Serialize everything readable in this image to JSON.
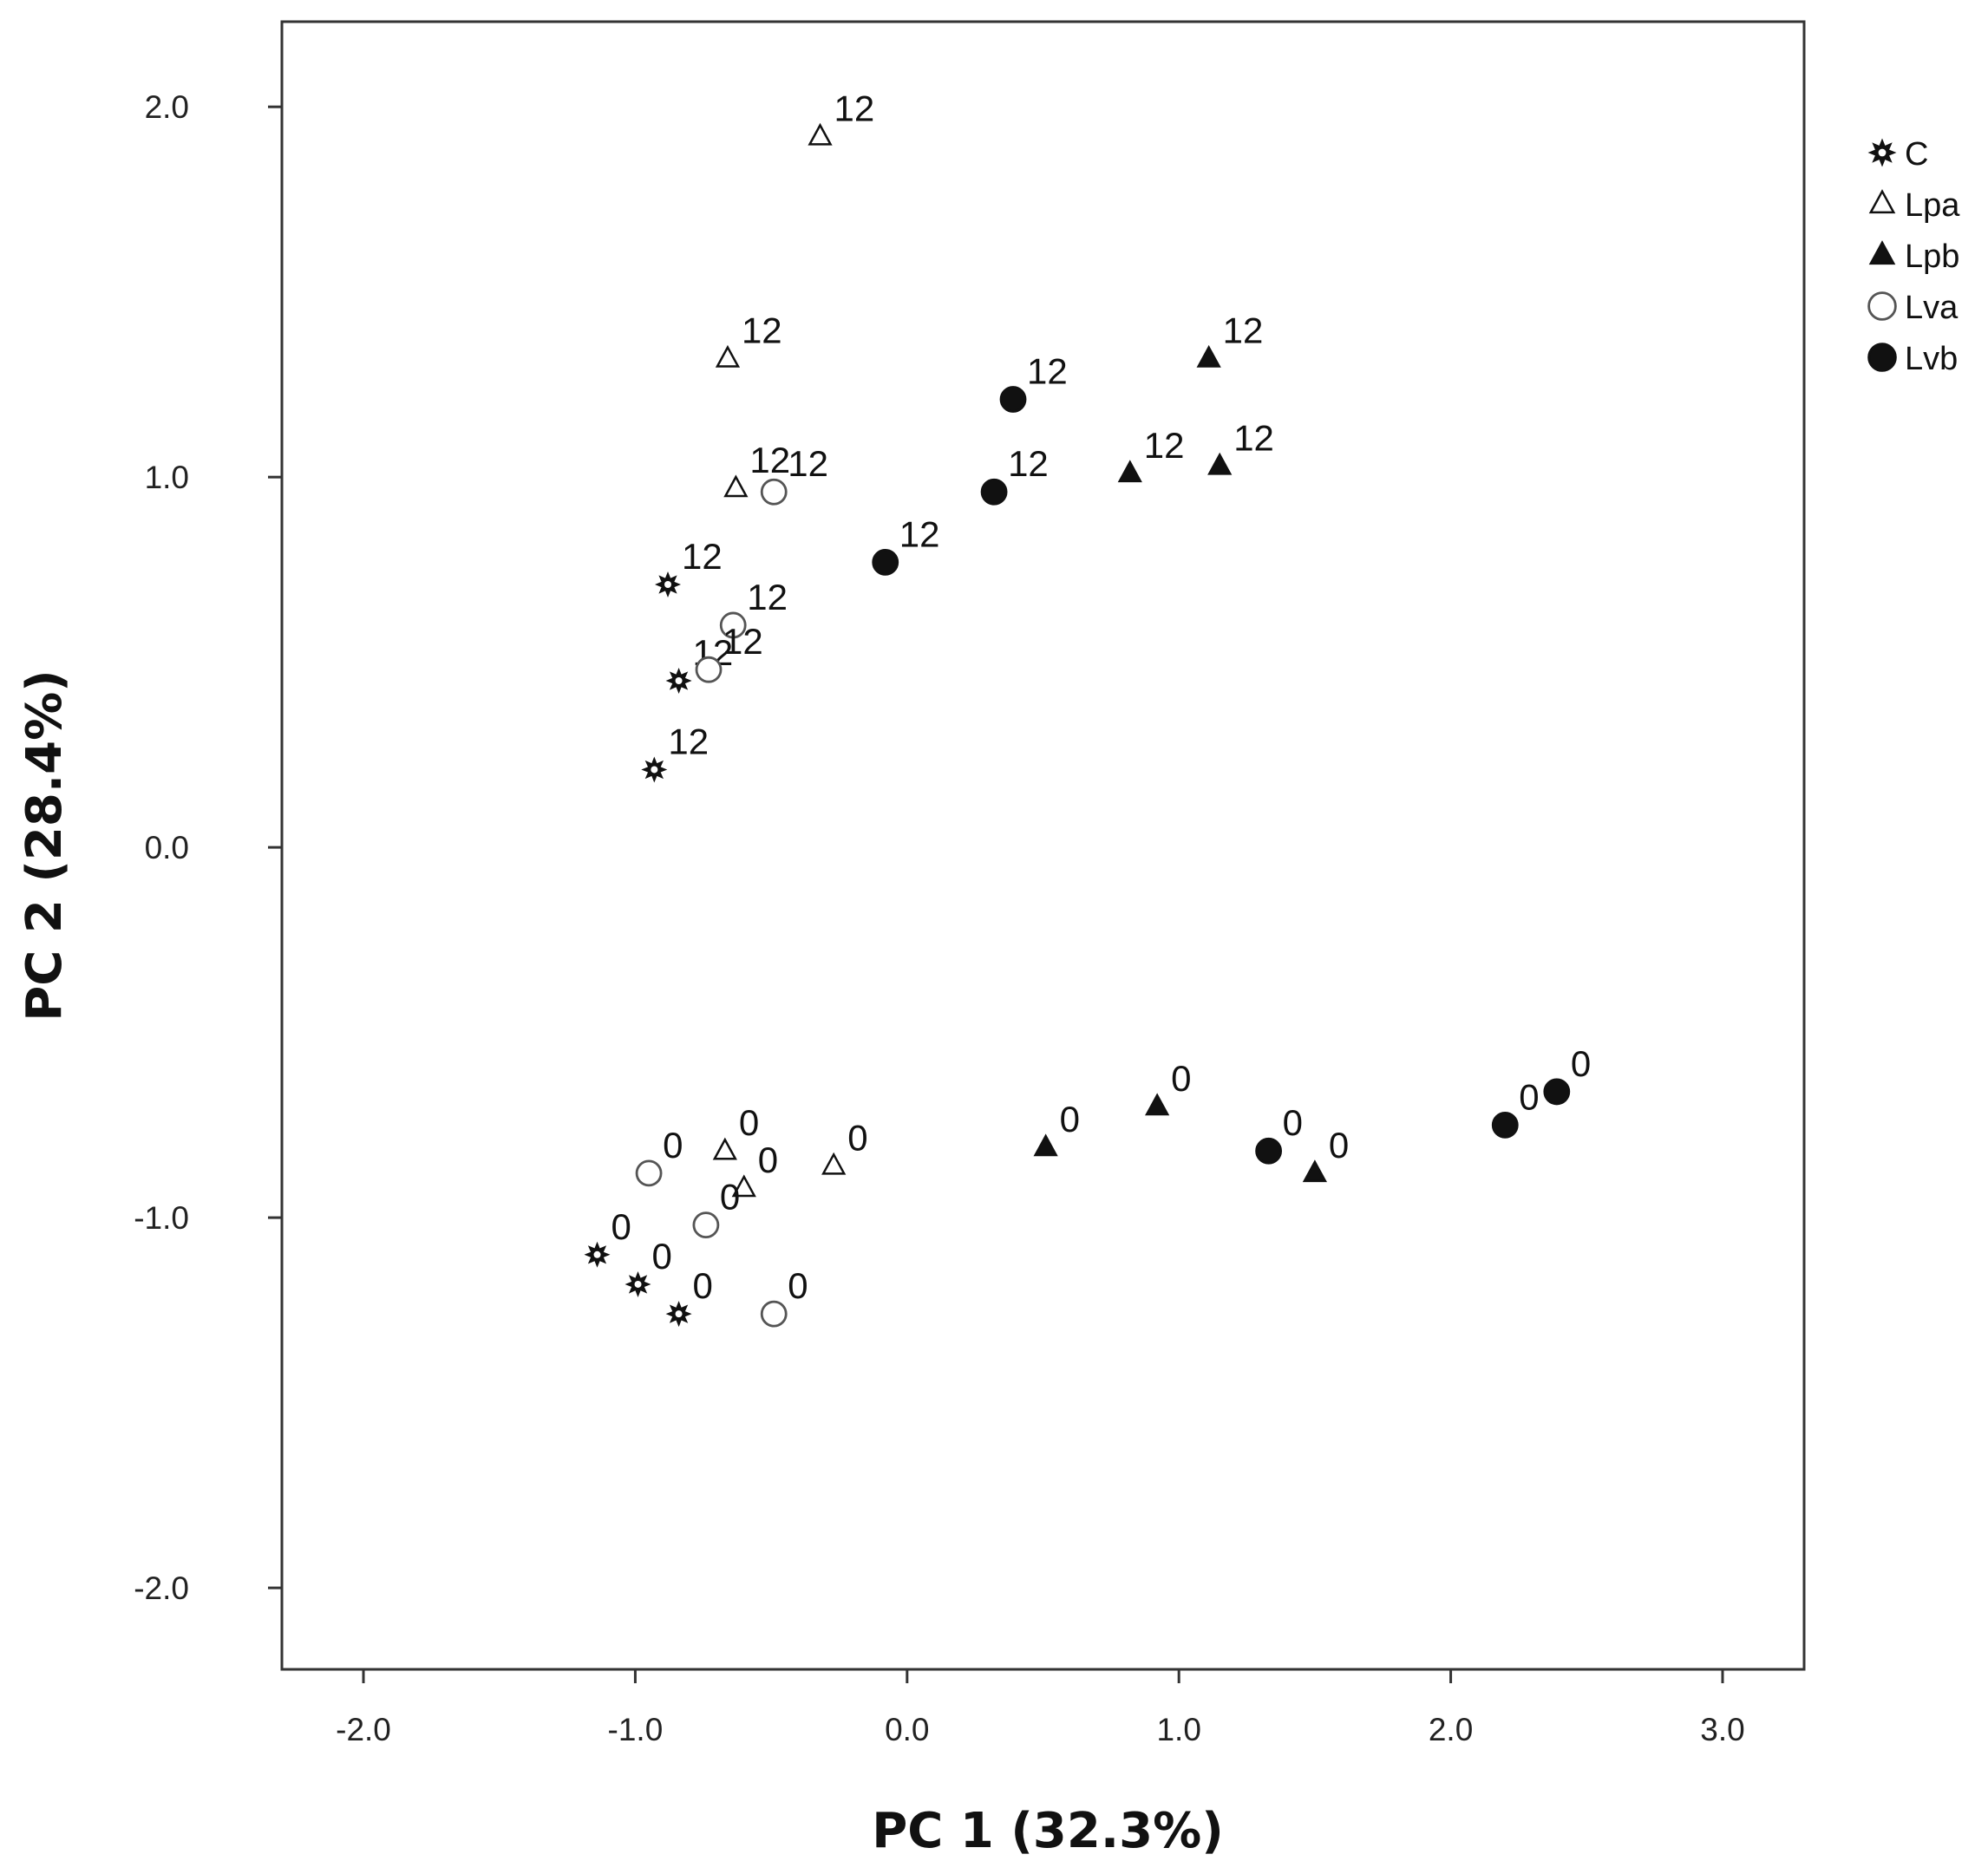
{
  "chart_data": {
    "type": "scatter",
    "xlabel": "PC 1 (32.3%)",
    "ylabel": "PC 2 (28.4%)",
    "xlim": [
      -2.3,
      3.3
    ],
    "ylim": [
      -2.22,
      2.23
    ],
    "x_ticks": [
      {
        "v": -2,
        "label": "-2.0"
      },
      {
        "v": -1,
        "label": "-1.0"
      },
      {
        "v": 0,
        "label": "0.0"
      },
      {
        "v": 1,
        "label": "1.0"
      },
      {
        "v": 2,
        "label": "2.0"
      },
      {
        "v": 3,
        "label": "3.0"
      }
    ],
    "y_ticks": [
      {
        "v": 2,
        "label": "2.0"
      },
      {
        "v": 1,
        "label": "1.0"
      },
      {
        "v": 0,
        "label": "0.0"
      },
      {
        "v": -1,
        "label": "-1.0"
      },
      {
        "v": -2,
        "label": "-2.0"
      }
    ],
    "legend_position": "top-right",
    "series": [
      {
        "name": "C",
        "marker": "star",
        "points": [
          {
            "x": -0.88,
            "y": 0.71,
            "label": "12"
          },
          {
            "x": -0.84,
            "y": 0.45,
            "label": "12"
          },
          {
            "x": -0.93,
            "y": 0.21,
            "label": "12"
          },
          {
            "x": -1.14,
            "y": -1.1,
            "label": "0"
          },
          {
            "x": -0.99,
            "y": -1.18,
            "label": "0"
          },
          {
            "x": -0.84,
            "y": -1.26,
            "label": "0"
          }
        ]
      },
      {
        "name": "Lpa",
        "marker": "triangle-open",
        "points": [
          {
            "x": -0.32,
            "y": 1.92,
            "label": "12"
          },
          {
            "x": -0.66,
            "y": 1.32,
            "label": "12"
          },
          {
            "x": -0.63,
            "y": 0.97,
            "label": "12"
          },
          {
            "x": -0.67,
            "y": -0.82,
            "label": "0"
          },
          {
            "x": -0.6,
            "y": -0.92,
            "label": "0"
          },
          {
            "x": -0.27,
            "y": -0.86,
            "label": "0"
          }
        ]
      },
      {
        "name": "Lpb",
        "marker": "triangle-filled",
        "points": [
          {
            "x": 1.11,
            "y": 1.32,
            "label": "12"
          },
          {
            "x": 0.82,
            "y": 1.01,
            "label": "12"
          },
          {
            "x": 1.15,
            "y": 1.03,
            "label": "12"
          },
          {
            "x": 0.92,
            "y": -0.7,
            "label": "0"
          },
          {
            "x": 0.51,
            "y": -0.81,
            "label": "0"
          },
          {
            "x": 1.5,
            "y": -0.88,
            "label": "0"
          }
        ]
      },
      {
        "name": "Lva",
        "marker": "circle-open",
        "points": [
          {
            "x": -0.49,
            "y": 0.96,
            "label": "12"
          },
          {
            "x": -0.64,
            "y": 0.6,
            "label": "12"
          },
          {
            "x": -0.73,
            "y": 0.48,
            "label": "12"
          },
          {
            "x": -0.95,
            "y": -0.88,
            "label": "0"
          },
          {
            "x": -0.74,
            "y": -1.02,
            "label": "0"
          },
          {
            "x": -0.49,
            "y": -1.26,
            "label": "0"
          }
        ]
      },
      {
        "name": "Lvb",
        "marker": "circle-filled",
        "points": [
          {
            "x": 0.39,
            "y": 1.21,
            "label": "12"
          },
          {
            "x": 0.32,
            "y": 0.96,
            "label": "12"
          },
          {
            "x": -0.08,
            "y": 0.77,
            "label": "12"
          },
          {
            "x": 1.33,
            "y": -0.82,
            "label": "0"
          },
          {
            "x": 2.2,
            "y": -0.75,
            "label": "0"
          },
          {
            "x": 2.39,
            "y": -0.66,
            "label": "0"
          }
        ]
      }
    ]
  }
}
